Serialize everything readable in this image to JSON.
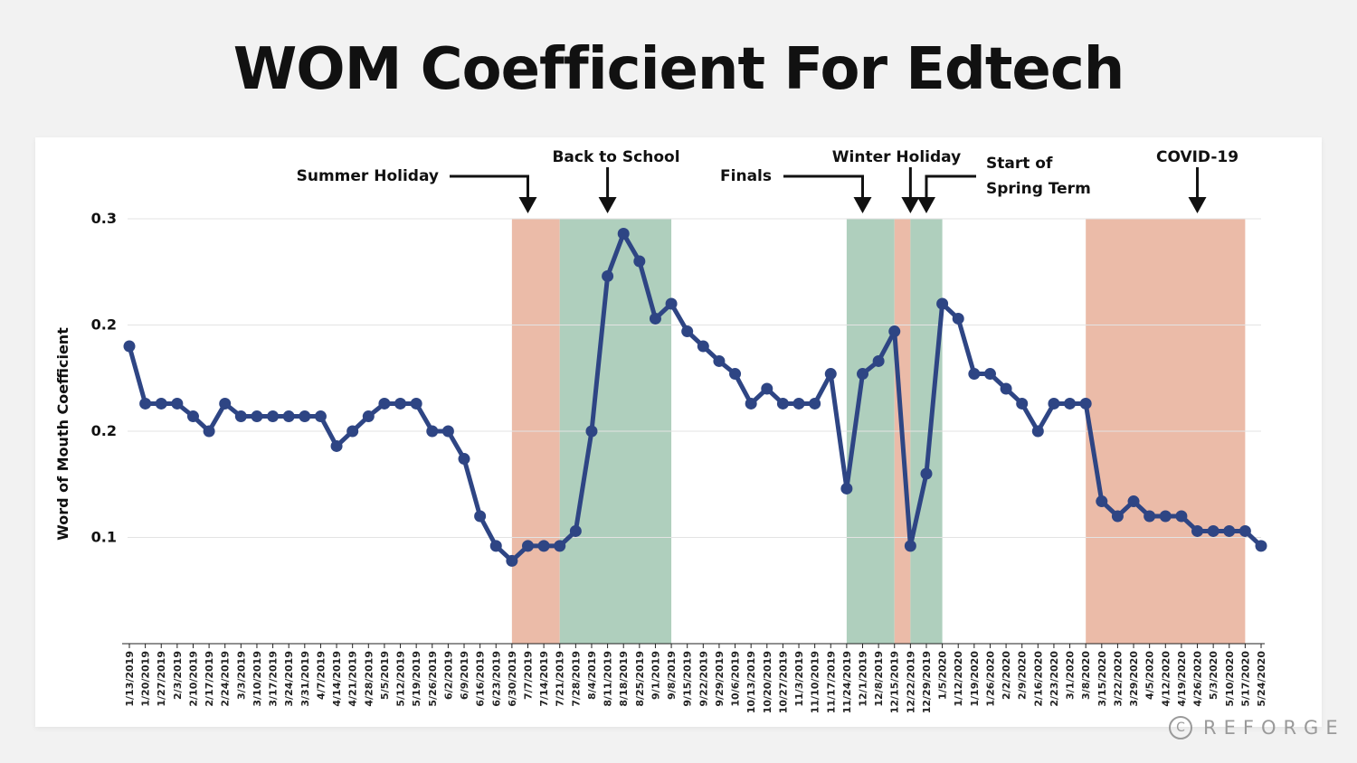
{
  "chart_data": {
    "type": "line",
    "title": "WOM Coefficient For Edtech",
    "xlabel": "",
    "ylabel": "Word of Mouth Coefficient",
    "ylim": [
      0.05,
      0.25
    ],
    "yticks": [
      0.1,
      0.15,
      0.2,
      0.25
    ],
    "ytick_labels": [
      "0.1",
      "0.2",
      "0.2",
      "0.3"
    ],
    "grid": true,
    "categories": [
      "1/13/2019",
      "1/20/2019",
      "1/27/2019",
      "2/3/2019",
      "2/10/2019",
      "2/17/2019",
      "2/24/2019",
      "3/3/2019",
      "3/10/2019",
      "3/17/2019",
      "3/24/2019",
      "3/31/2019",
      "4/7/2019",
      "4/14/2019",
      "4/21/2019",
      "4/28/2019",
      "5/5/2019",
      "5/12/2019",
      "5/19/2019",
      "5/26/2019",
      "6/2/2019",
      "6/9/2019",
      "6/16/2019",
      "6/23/2019",
      "6/30/2019",
      "7/7/2019",
      "7/14/2019",
      "7/21/2019",
      "7/28/2019",
      "8/4/2019",
      "8/11/2019",
      "8/18/2019",
      "8/25/2019",
      "9/1/2019",
      "9/8/2019",
      "9/15/2019",
      "9/22/2019",
      "9/29/2019",
      "10/6/2019",
      "10/13/2019",
      "10/20/2019",
      "10/27/2019",
      "11/3/2019",
      "11/10/2019",
      "11/17/2019",
      "11/24/2019",
      "12/1/2019",
      "12/8/2019",
      "12/15/2019",
      "12/22/2019",
      "12/29/2019",
      "1/5/2020",
      "1/12/2020",
      "1/19/2020",
      "1/26/2020",
      "2/2/2020",
      "2/9/2020",
      "2/16/2020",
      "2/23/2020",
      "3/1/2020",
      "3/8/2020",
      "3/15/2020",
      "3/22/2020",
      "3/29/2020",
      "4/5/2020",
      "4/12/2020",
      "4/19/2020",
      "4/26/2020",
      "5/3/2020",
      "5/10/2020",
      "5/17/2020",
      "5/24/2020"
    ],
    "series": [
      {
        "name": "Word of Mouth Coefficient",
        "color": "#2e4584",
        "values": [
          0.19,
          0.163,
          0.163,
          0.163,
          0.157,
          0.15,
          0.163,
          0.157,
          0.157,
          0.157,
          0.157,
          0.157,
          0.157,
          0.143,
          0.15,
          0.157,
          0.163,
          0.163,
          0.163,
          0.15,
          0.15,
          0.137,
          0.11,
          0.096,
          0.089,
          0.096,
          0.096,
          0.096,
          0.103,
          0.15,
          0.223,
          0.243,
          0.23,
          0.203,
          0.21,
          0.197,
          0.19,
          0.183,
          0.177,
          0.163,
          0.17,
          0.163,
          0.163,
          0.163,
          0.177,
          0.123,
          0.177,
          0.183,
          0.197,
          0.096,
          0.13,
          0.21,
          0.203,
          0.177,
          0.177,
          0.17,
          0.163,
          0.15,
          0.163,
          0.163,
          0.163,
          0.117,
          0.11,
          0.117,
          0.11,
          0.11,
          0.11,
          0.103,
          0.103,
          0.103,
          0.103,
          0.096
        ]
      }
    ],
    "shaded_regions": [
      {
        "label": "Summer Holiday",
        "start": "6/30/2019",
        "end": "7/21/2019",
        "color": "#ebbba8"
      },
      {
        "label": "Back to School",
        "start": "7/21/2019",
        "end": "9/8/2019",
        "color": "#afcfbd"
      },
      {
        "label": "Finals",
        "start": "11/24/2019",
        "end": "12/15/2019",
        "color": "#afcfbd"
      },
      {
        "label": "Winter Holiday",
        "start": "12/15/2019",
        "end": "12/22/2019",
        "color": "#ebbba8"
      },
      {
        "label": "Start of Spring Term",
        "start": "12/22/2019",
        "end": "1/5/2020",
        "color": "#afcfbd"
      },
      {
        "label": "COVID-19",
        "start": "3/8/2020",
        "end": "5/17/2020",
        "color": "#ebbba8"
      }
    ],
    "annotations": [
      {
        "text": "Summer Holiday",
        "lines": [
          "Summer Holiday"
        ],
        "arrow_at": "7/7/2019"
      },
      {
        "text": "Back to School",
        "lines": [
          "Back to School"
        ],
        "arrow_at": "8/11/2019"
      },
      {
        "text": "Finals",
        "lines": [
          "Finals"
        ],
        "arrow_at": "12/1/2019"
      },
      {
        "text": "Winter Holiday",
        "lines": [
          "Winter Holiday"
        ],
        "arrow_at": "12/22/2019"
      },
      {
        "text": "Start of Spring Term",
        "lines": [
          "Start of",
          "Spring Term"
        ],
        "arrow_at": "12/29/2019"
      },
      {
        "text": "COVID-19",
        "lines": [
          "COVID-19"
        ],
        "arrow_at": "4/26/2020"
      }
    ]
  },
  "branding": {
    "copyright_symbol": "C",
    "name": "REFORGE"
  }
}
